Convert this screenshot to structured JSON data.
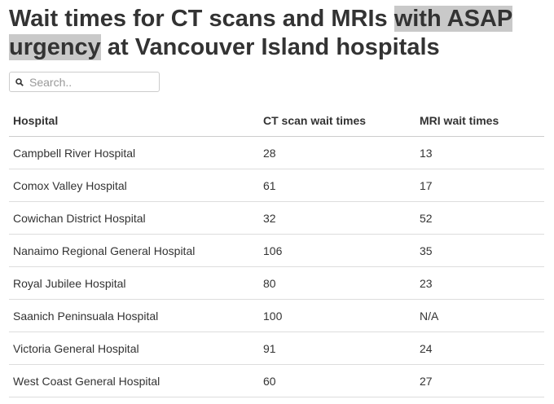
{
  "header": {
    "title_parts": [
      "Wait times for CT scans and MRIs ",
      "with ASAP urgency",
      " at Vancouver Island hospitals"
    ]
  },
  "search": {
    "placeholder": "Search.."
  },
  "table": {
    "columns": [
      "Hospital",
      "CT scan wait times",
      "MRI wait times"
    ],
    "rows": [
      [
        "Campbell River Hospital",
        28,
        13
      ],
      [
        "Comox Valley Hospital",
        61,
        17
      ],
      [
        "Cowichan District Hospital",
        32,
        52
      ],
      [
        "Nanaimo Regional General Hospital",
        106,
        35
      ],
      [
        "Royal Jubilee Hospital",
        80,
        23
      ],
      [
        "Saanich Peninsuala Hospital",
        100,
        "N/A"
      ],
      [
        "Victoria General Hospital",
        91,
        24
      ],
      [
        "West Coast General Hospital",
        60,
        27
      ]
    ]
  }
}
